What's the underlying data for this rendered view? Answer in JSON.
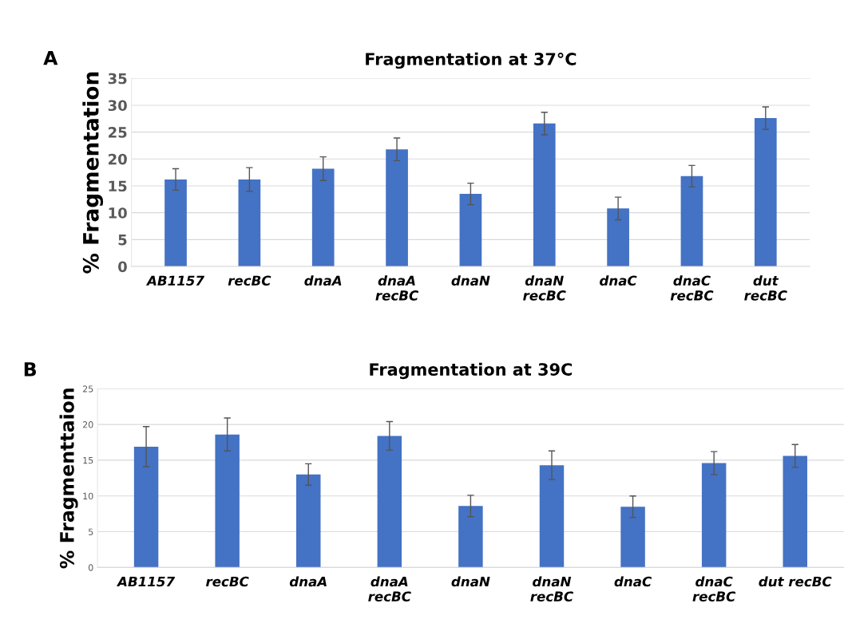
{
  "chart_data": [
    {
      "type": "bar",
      "title": "Fragmentation at 37°C",
      "ylabel": "% Fragmentation",
      "annotations": [
        "A"
      ],
      "categories": [
        "AB1157",
        "recBC",
        "dnaA",
        "dnaA\nrecBC",
        "dnaN",
        "dnaN\nrecBC",
        "dnaC",
        "dnaC\nrecBC",
        "dut\nrecBC"
      ],
      "values": [
        16.2,
        16.2,
        18.2,
        21.8,
        13.5,
        26.6,
        10.8,
        16.8,
        27.6
      ],
      "errors": [
        2.0,
        2.2,
        2.2,
        2.1,
        2.0,
        2.1,
        2.1,
        2.0,
        2.1
      ],
      "color": "#4472c4",
      "ylim": [
        0,
        35
      ],
      "yticks": [
        0,
        5,
        10,
        15,
        20,
        25,
        30,
        35
      ],
      "grid": "y"
    },
    {
      "type": "bar",
      "title": "Fragmentation at 39C",
      "ylabel": "% Fragmenttaion",
      "annotations": [
        "B"
      ],
      "categories": [
        "AB1157",
        "recBC",
        "dnaA",
        "dnaA\nrecBC",
        "dnaN",
        "dnaN\nrecBC",
        "dnaC",
        "dnaC\nrecBC",
        "dut recBC"
      ],
      "values": [
        16.9,
        18.6,
        13.0,
        18.4,
        8.6,
        14.3,
        8.5,
        14.6,
        15.6
      ],
      "errors": [
        2.8,
        2.3,
        1.5,
        2.0,
        1.5,
        2.0,
        1.5,
        1.6,
        1.6
      ],
      "color": "#4472c4",
      "ylim": [
        0,
        25
      ],
      "yticks": [
        0,
        5,
        10,
        15,
        20,
        25
      ],
      "grid": "y"
    }
  ]
}
